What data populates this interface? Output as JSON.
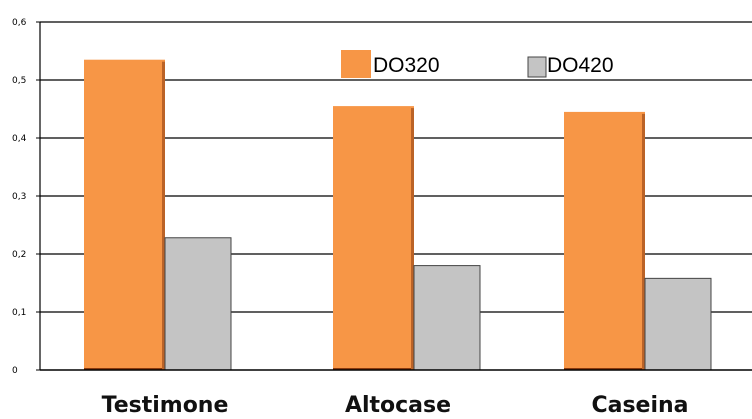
{
  "colors": {
    "series_1": "#f79646",
    "series_1_edge": "#8b3a0e",
    "series_2": "#c4c4c4",
    "series_2_edge": "#444444",
    "grid": "#000000",
    "axis": "#000000"
  },
  "chart_data": {
    "type": "bar",
    "categories": [
      "Testimone",
      "Altocase",
      "Caseina"
    ],
    "series": [
      {
        "name": "DO320",
        "values": [
          0.535,
          0.455,
          0.445
        ]
      },
      {
        "name": "DO420",
        "values": [
          0.228,
          0.18,
          0.158
        ]
      }
    ],
    "ylim": [
      0,
      0.6
    ],
    "yticks": [
      0,
      0.1,
      0.2,
      0.3,
      0.4,
      0.5,
      0.6
    ],
    "ytick_labels": [
      "0",
      "0,1",
      "0,2",
      "0,3",
      "0,4",
      "0,5",
      "0,6"
    ],
    "grid": true,
    "legend_position": "top-right"
  }
}
